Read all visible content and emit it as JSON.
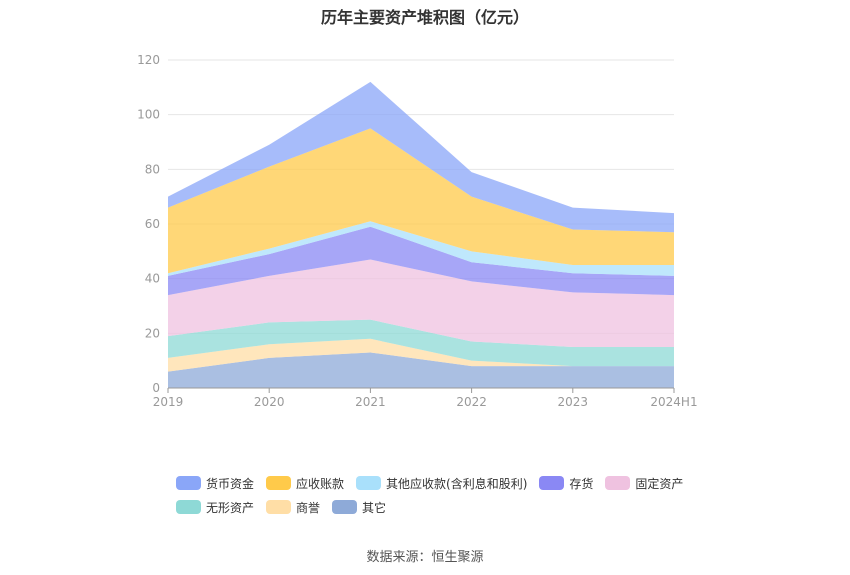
{
  "chart_data": {
    "type": "area",
    "stacked": true,
    "title": "历年主要资产堆积图（亿元）",
    "x": [
      "2019",
      "2020",
      "2021",
      "2022",
      "2023",
      "2024H1"
    ],
    "ylim": [
      0,
      120
    ],
    "yticks": [
      0,
      20,
      40,
      60,
      80,
      100,
      120
    ],
    "grid": true,
    "legend_position": "bottom",
    "series": [
      {
        "name": "其它",
        "color": "#8eaad8",
        "values": [
          6,
          11,
          13,
          8,
          8,
          8
        ]
      },
      {
        "name": "商誉",
        "color": "#ffdea6",
        "values": [
          5,
          5,
          5,
          2,
          0,
          0
        ]
      },
      {
        "name": "无形资产",
        "color": "#8ed9d6",
        "values": [
          8,
          8,
          7,
          7,
          7,
          7
        ]
      },
      {
        "name": "固定资产",
        "color": "#efc2e0",
        "values": [
          15,
          17,
          22,
          22,
          20,
          19
        ]
      },
      {
        "name": "存货",
        "color": "#8a88f4",
        "values": [
          7,
          8,
          12,
          7,
          7,
          7
        ]
      },
      {
        "name": "其他应收款(含利息和股利)",
        "color": "#a9e0fb",
        "values": [
          1,
          2,
          2,
          4,
          3,
          4
        ]
      },
      {
        "name": "应收账款",
        "color": "#ffca4a",
        "values": [
          24,
          30,
          34,
          20,
          13,
          12
        ]
      },
      {
        "name": "货币资金",
        "color": "#8aa6f8",
        "values": [
          4,
          8,
          17,
          9,
          8,
          7
        ]
      }
    ],
    "legend_order": [
      "货币资金",
      "应收账款",
      "其他应收款(含利息和股利)",
      "存货",
      "固定资产",
      "无形资产",
      "商誉",
      "其它"
    ]
  },
  "source_text": "数据来源：恒生聚源"
}
